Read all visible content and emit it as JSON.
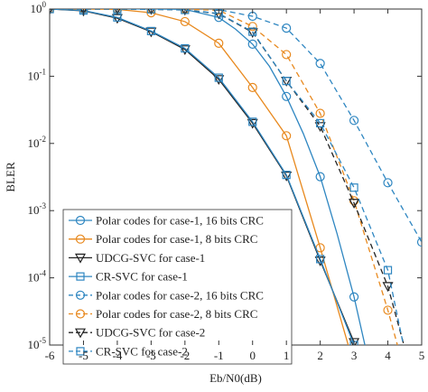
{
  "chart_data": {
    "type": "line",
    "log_y": true,
    "grid": false,
    "xlabel": "Eb/N0(dB)",
    "ylabel": "BLER",
    "xlim": [
      -6,
      5
    ],
    "xticks": [
      -6,
      -5,
      -4,
      -3,
      -2,
      -1,
      0,
      1,
      2,
      3,
      4,
      5
    ],
    "ylim": [
      1e-05,
      1
    ],
    "yticks": [
      {
        "value": 1,
        "label": "10^0"
      },
      {
        "value": 0.1,
        "label": "10^-1"
      },
      {
        "value": 0.01,
        "label": "10^-2"
      },
      {
        "value": 0.001,
        "label": "10^-3"
      },
      {
        "value": 0.0001,
        "label": "10^-4"
      },
      {
        "value": 1e-05,
        "label": "10^-5"
      }
    ],
    "legend": "lower-left",
    "series": [
      {
        "name": "Polar codes for case-1, 16 bits CRC",
        "color": "#2e86c1",
        "marker": "circle",
        "linestyle": "solid",
        "x": [
          -6,
          -5,
          -4,
          -3,
          -2,
          -1,
          -0.5,
          0,
          0.5,
          1,
          1.5,
          2,
          2.5,
          3,
          3.5
        ],
        "values": [
          1,
          1,
          1,
          1,
          0.99,
          0.75,
          0.5,
          0.3,
          0.14,
          0.05,
          0.014,
          0.0032,
          0.00045,
          5.2e-05,
          4e-06
        ]
      },
      {
        "name": "Polar codes for case-1, 8 bits CRC",
        "color": "#e8891e",
        "marker": "circle",
        "linestyle": "solid",
        "x": [
          -6,
          -5,
          -4,
          -3,
          -2,
          -1,
          0,
          1,
          2,
          3
        ],
        "values": [
          1,
          1,
          0.99,
          0.88,
          0.65,
          0.31,
          0.068,
          0.013,
          0.00028,
          5e-06
        ]
      },
      {
        "name": "UDCG-SVC for case-1",
        "color": "#222222",
        "marker": "triangle",
        "linestyle": "solid",
        "x": [
          -6,
          -5,
          -4,
          -3,
          -2,
          -1,
          0,
          1,
          2,
          3
        ],
        "values": [
          1,
          0.94,
          0.73,
          0.46,
          0.25,
          0.09,
          0.02,
          0.0033,
          0.00018,
          1.1e-05
        ]
      },
      {
        "name": "CR-SVC for case-1",
        "color": "#2e86c1",
        "marker": "square",
        "linestyle": "solid",
        "x": [
          -6,
          -5,
          -4,
          -3,
          -2,
          -1,
          0,
          1,
          2,
          3
        ],
        "values": [
          1,
          0.95,
          0.75,
          0.47,
          0.26,
          0.095,
          0.021,
          0.0034,
          0.00019,
          1e-05
        ]
      },
      {
        "name": "Polar codes for case-2, 16 bits CRC",
        "color": "#2e86c1",
        "marker": "circle",
        "linestyle": "dashed",
        "x": [
          -6,
          -5,
          -4,
          -3,
          -2,
          -1,
          0,
          1,
          2,
          3,
          4,
          5
        ],
        "values": [
          1,
          1,
          1,
          1,
          1,
          0.98,
          0.78,
          0.52,
          0.155,
          0.022,
          0.0026,
          0.00034
        ]
      },
      {
        "name": "Polar codes for case-2, 8 bits CRC",
        "color": "#e8891e",
        "marker": "circle",
        "linestyle": "dashed",
        "x": [
          -6,
          -5,
          -4,
          -3,
          -2,
          -1,
          0,
          1,
          2,
          3,
          4,
          4.5
        ],
        "values": [
          1,
          1,
          1,
          1,
          0.99,
          0.96,
          0.55,
          0.21,
          0.028,
          0.0014,
          3.3e-05,
          4e-06
        ]
      },
      {
        "name": "UDCG-SVC for case-2",
        "color": "#222222",
        "marker": "triangle",
        "linestyle": "dashed",
        "x": [
          -6,
          -5,
          -4,
          -3,
          -2,
          -1,
          0,
          1,
          2,
          3,
          4,
          4.5
        ],
        "values": [
          1,
          1,
          1,
          0.99,
          0.97,
          0.85,
          0.45,
          0.085,
          0.018,
          0.0013,
          7.5e-05,
          9e-06
        ]
      },
      {
        "name": "CR-SVC for case-2",
        "color": "#2e86c1",
        "marker": "square",
        "linestyle": "dashed",
        "x": [
          -6,
          -5,
          -4,
          -3,
          -2,
          -1,
          0,
          1,
          2,
          3,
          4,
          4.5
        ],
        "values": [
          1,
          1,
          1,
          0.99,
          0.97,
          0.86,
          0.46,
          0.085,
          0.02,
          0.0022,
          0.00013,
          8e-06
        ]
      }
    ]
  }
}
